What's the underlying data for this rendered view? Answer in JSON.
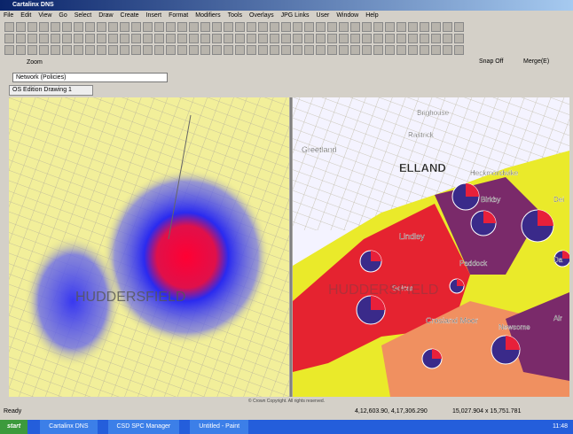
{
  "window": {
    "title": "Cartalinx DNS"
  },
  "menu": [
    "File",
    "Edit",
    "View",
    "Go",
    "Select",
    "Draw",
    "Create",
    "Insert",
    "Format",
    "Modifiers",
    "Tools",
    "Overlays",
    "JPG Links",
    "User",
    "Window",
    "Help"
  ],
  "toolbar": {
    "zoom": "Zoom",
    "snap": "Snap Off",
    "merge": "Merge(E)"
  },
  "layer_select": "Network (Policies)",
  "tab": "OS Edition Drawing 1",
  "map_left": {
    "labels": [
      "HUDDERSFIELD"
    ]
  },
  "map_right": {
    "labels": [
      "Brighouse",
      "Rastrick",
      "Greetland",
      "ELLAND",
      "Heckmondwike",
      "Birkby",
      "Lindley",
      "Paddock",
      "Golcar",
      "HUDDERSFIELD",
      "Crosland Moor",
      "Newsome",
      "Dei",
      "Da",
      "Alr"
    ]
  },
  "copyright": "© Crown Copyright. All rights reserved.",
  "status": {
    "ready": "Ready",
    "coords": "4,12,603.90, 4,17,306.290",
    "size": "15,027.904 x 15,751.781"
  },
  "taskbar": {
    "start": "start",
    "items": [
      "Cartalinx DNS",
      "CSD SPC Manager",
      "Untitled - Paint"
    ],
    "clock": "11:48"
  }
}
